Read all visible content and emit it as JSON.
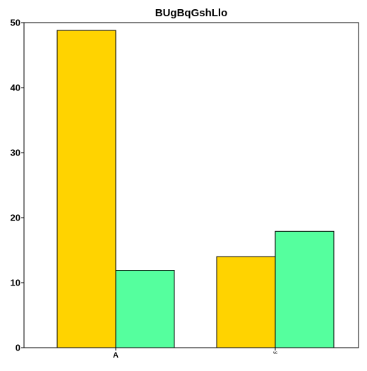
{
  "chart_data": {
    "type": "bar",
    "title": "BUgBqGshLlo",
    "xlabel": "",
    "ylabel": "",
    "categories": [
      "A",
      "vc"
    ],
    "series": [
      {
        "values": [
          48.8,
          14.0
        ],
        "color": "#FFD300"
      },
      {
        "values": [
          11.9,
          17.9
        ],
        "color": "#55FF9E"
      }
    ],
    "ylim": [
      0,
      50
    ],
    "yticks": [
      0,
      10,
      20,
      30,
      40,
      50
    ],
    "grid": false,
    "legend": "none"
  }
}
